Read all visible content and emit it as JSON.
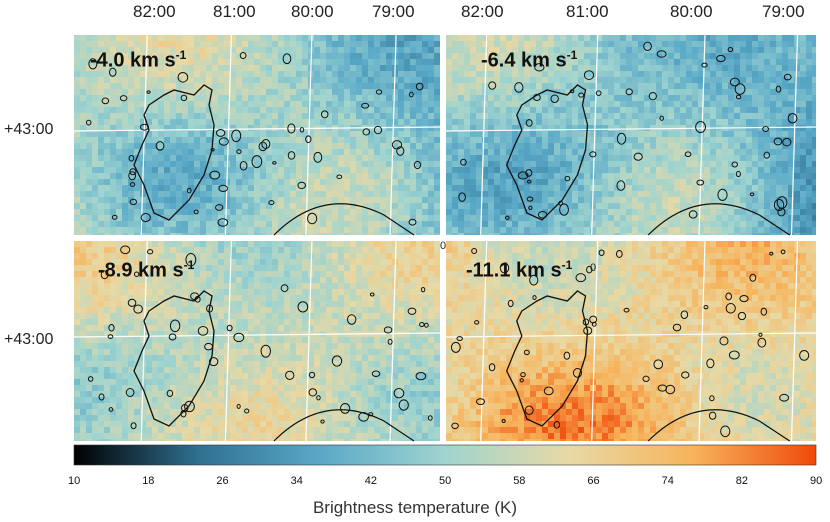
{
  "chart_data": {
    "type": "heatmap",
    "title": "",
    "panels": [
      {
        "velocity_label": "-4.0 km s",
        "unit_exponent": "-1"
      },
      {
        "velocity_label": "-6.4 km s",
        "unit_exponent": "-1"
      },
      {
        "velocity_label": "-8.9 km s",
        "unit_exponent": "-1"
      },
      {
        "velocity_label": "-11.1 km s",
        "unit_exponent": "-1"
      }
    ],
    "x_ticks": [
      "82:00",
      "81:00",
      "80:00",
      "79:00"
    ],
    "y_ticks": [
      "+43:00"
    ],
    "colorbar": {
      "label": "Brightness temperature (K)",
      "ticks": [
        10,
        18,
        26,
        34,
        42,
        50,
        58,
        66,
        74,
        82,
        90
      ],
      "range": [
        10,
        90
      ],
      "colors": [
        "#000000",
        "#2f6f8f",
        "#5aa9c8",
        "#9fd4cf",
        "#e8d9a5",
        "#f7b45c",
        "#f04a0a"
      ]
    },
    "stray_tick_marks": [
      "0",
      "0"
    ]
  }
}
